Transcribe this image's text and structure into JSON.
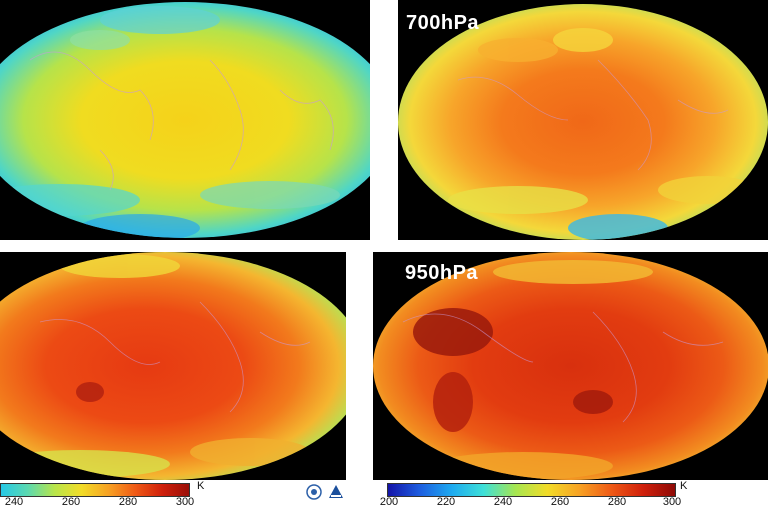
{
  "panels": [
    {
      "id": "tl",
      "label": "",
      "palette": "cold"
    },
    {
      "id": "tr",
      "label": "700hPa",
      "palette": "warm"
    },
    {
      "id": "bl",
      "label": "",
      "palette": "hot"
    },
    {
      "id": "br",
      "label": "950hPa",
      "palette": "hotter"
    }
  ],
  "colorbar_left": {
    "ticks": [
      "240",
      "260",
      "280",
      "300"
    ],
    "unit": "K"
  },
  "colorbar_right": {
    "ticks": [
      "200",
      "220",
      "240",
      "260",
      "280",
      "300"
    ],
    "unit": "K"
  },
  "logos": [
    {
      "name": "emblem-icon",
      "color": "#2b5fa8"
    },
    {
      "name": "nsmc-logo-icon",
      "color": "#1b4f9c"
    }
  ]
}
